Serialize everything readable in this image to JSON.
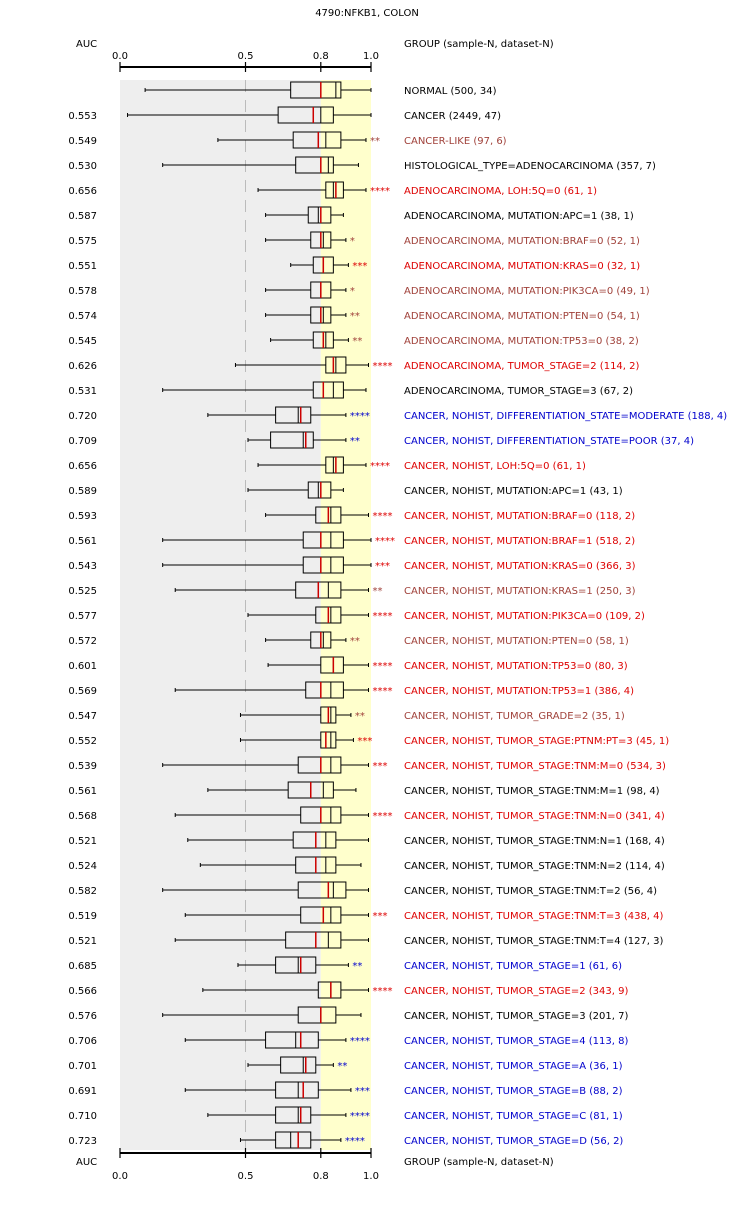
{
  "chart_data": {
    "type": "box",
    "title": "4790:NFKB1, COLON",
    "auc_header": "AUC",
    "group_header": "GROUP (sample-N, dataset-N)",
    "xlim": [
      0,
      1
    ],
    "x_ticks": [
      0,
      0.5,
      0.8,
      1
    ],
    "x_tick_labels": [
      "0.0",
      "0.5",
      "0.8",
      "1.0"
    ],
    "auc_threshold_dashed": 0.5,
    "highlight_range": [
      0.8,
      1.0
    ],
    "colors": {
      "black": "#000000",
      "red": "#dd0000",
      "brown": "#a0413a",
      "blue": "#0000cc",
      "median": "#cc0000",
      "gray_band": "#eeeeee",
      "yellow_band": "#ffffcc",
      "axis": "#000000",
      "dash": "#bbbbbb"
    },
    "rows": [
      {
        "label": "NORMAL (500, 34)",
        "auc": "",
        "color": "black",
        "stars": "",
        "min": 0.1,
        "q1": 0.68,
        "median": 0.8,
        "q3": 0.88,
        "max": 1.0,
        "lines": [
          0.8,
          0.86
        ]
      },
      {
        "label": "CANCER (2449, 47)",
        "auc": "0.553",
        "color": "black",
        "stars": "",
        "min": 0.03,
        "q1": 0.63,
        "median": 0.77,
        "q3": 0.85,
        "max": 1.0,
        "lines": [
          0.77,
          0.8
        ]
      },
      {
        "label": "CANCER-LIKE (97, 6)",
        "auc": "0.549",
        "color": "brown",
        "stars": "**",
        "min": 0.39,
        "q1": 0.69,
        "median": 0.79,
        "q3": 0.88,
        "max": 0.98,
        "lines": [
          0.79,
          0.82
        ]
      },
      {
        "label": "HISTOLOGICAL_TYPE=ADENOCARCINOMA (357, 7)",
        "auc": "0.530",
        "color": "black",
        "stars": "",
        "min": 0.17,
        "q1": 0.7,
        "median": 0.8,
        "q3": 0.85,
        "max": 0.95,
        "lines": [
          0.8,
          0.83
        ]
      },
      {
        "label": "ADENOCARCINOMA, LOH:5Q=0 (61, 1)",
        "auc": "0.656",
        "color": "red",
        "stars": "****",
        "min": 0.55,
        "q1": 0.82,
        "median": 0.86,
        "q3": 0.89,
        "max": 0.98,
        "lines": [
          0.86,
          0.85
        ]
      },
      {
        "label": "ADENOCARCINOMA, MUTATION:APC=1 (38, 1)",
        "auc": "0.587",
        "color": "black",
        "stars": "",
        "min": 0.58,
        "q1": 0.75,
        "median": 0.8,
        "q3": 0.84,
        "max": 0.89,
        "lines": [
          0.8,
          0.79
        ]
      },
      {
        "label": "ADENOCARCINOMA, MUTATION:BRAF=0 (52, 1)",
        "auc": "0.575",
        "color": "brown",
        "stars": "*",
        "min": 0.58,
        "q1": 0.76,
        "median": 0.8,
        "q3": 0.84,
        "max": 0.9,
        "lines": [
          0.8,
          0.81
        ]
      },
      {
        "label": "ADENOCARCINOMA, MUTATION:KRAS=0 (32, 1)",
        "auc": "0.551",
        "color": "red",
        "stars": "***",
        "min": 0.68,
        "q1": 0.77,
        "median": 0.81,
        "q3": 0.85,
        "max": 0.91,
        "lines": [
          0.81,
          0.81
        ]
      },
      {
        "label": "ADENOCARCINOMA, MUTATION:PIK3CA=0 (49, 1)",
        "auc": "0.578",
        "color": "brown",
        "stars": "*",
        "min": 0.58,
        "q1": 0.76,
        "median": 0.8,
        "q3": 0.84,
        "max": 0.9,
        "lines": [
          0.8,
          0.8
        ]
      },
      {
        "label": "ADENOCARCINOMA, MUTATION:PTEN=0 (54, 1)",
        "auc": "0.574",
        "color": "brown",
        "stars": "**",
        "min": 0.58,
        "q1": 0.76,
        "median": 0.8,
        "q3": 0.84,
        "max": 0.9,
        "lines": [
          0.8,
          0.81
        ]
      },
      {
        "label": "ADENOCARCINOMA, MUTATION:TP53=0 (38, 2)",
        "auc": "0.545",
        "color": "brown",
        "stars": "**",
        "min": 0.6,
        "q1": 0.77,
        "median": 0.81,
        "q3": 0.85,
        "max": 0.91,
        "lines": [
          0.81,
          0.82
        ]
      },
      {
        "label": "ADENOCARCINOMA, TUMOR_STAGE=2 (114, 2)",
        "auc": "0.626",
        "color": "red",
        "stars": "****",
        "min": 0.46,
        "q1": 0.82,
        "median": 0.85,
        "q3": 0.9,
        "max": 0.99,
        "lines": [
          0.85,
          0.86
        ]
      },
      {
        "label": "ADENOCARCINOMA, TUMOR_STAGE=3 (67, 2)",
        "auc": "0.531",
        "color": "black",
        "stars": "",
        "min": 0.17,
        "q1": 0.77,
        "median": 0.81,
        "q3": 0.89,
        "max": 0.98,
        "lines": [
          0.81,
          0.85
        ]
      },
      {
        "label": "CANCER, NOHIST, DIFFERENTIATION_STATE=MODERATE (188, 4)",
        "auc": "0.720",
        "color": "blue",
        "stars": "****",
        "min": 0.35,
        "q1": 0.62,
        "median": 0.72,
        "q3": 0.76,
        "max": 0.9,
        "lines": [
          0.72,
          0.71
        ]
      },
      {
        "label": "CANCER, NOHIST, DIFFERENTIATION_STATE=POOR (37, 4)",
        "auc": "0.709",
        "color": "blue",
        "stars": "**",
        "min": 0.51,
        "q1": 0.6,
        "median": 0.74,
        "q3": 0.77,
        "max": 0.9,
        "lines": [
          0.74,
          0.73
        ]
      },
      {
        "label": "CANCER, NOHIST, LOH:5Q=0 (61, 1)",
        "auc": "0.656",
        "color": "red",
        "stars": "****",
        "min": 0.55,
        "q1": 0.82,
        "median": 0.86,
        "q3": 0.89,
        "max": 0.98,
        "lines": [
          0.86,
          0.85
        ]
      },
      {
        "label": "CANCER, NOHIST, MUTATION:APC=1 (43, 1)",
        "auc": "0.589",
        "color": "black",
        "stars": "",
        "min": 0.51,
        "q1": 0.75,
        "median": 0.8,
        "q3": 0.84,
        "max": 0.89,
        "lines": [
          0.8,
          0.79
        ]
      },
      {
        "label": "CANCER, NOHIST, MUTATION:BRAF=0 (118, 2)",
        "auc": "0.593",
        "color": "red",
        "stars": "****",
        "min": 0.58,
        "q1": 0.78,
        "median": 0.83,
        "q3": 0.88,
        "max": 0.99,
        "lines": [
          0.83,
          0.84
        ]
      },
      {
        "label": "CANCER, NOHIST, MUTATION:BRAF=1 (518, 2)",
        "auc": "0.561",
        "color": "red",
        "stars": "****",
        "min": 0.17,
        "q1": 0.73,
        "median": 0.8,
        "q3": 0.89,
        "max": 1.0,
        "lines": [
          0.8,
          0.84
        ]
      },
      {
        "label": "CANCER, NOHIST, MUTATION:KRAS=0 (366, 3)",
        "auc": "0.543",
        "color": "red",
        "stars": "***",
        "min": 0.17,
        "q1": 0.73,
        "median": 0.8,
        "q3": 0.89,
        "max": 1.0,
        "lines": [
          0.8,
          0.84
        ]
      },
      {
        "label": "CANCER, NOHIST, MUTATION:KRAS=1 (250, 3)",
        "auc": "0.525",
        "color": "brown",
        "stars": "**",
        "min": 0.22,
        "q1": 0.7,
        "median": 0.79,
        "q3": 0.88,
        "max": 0.99,
        "lines": [
          0.79,
          0.83
        ]
      },
      {
        "label": "CANCER, NOHIST, MUTATION:PIK3CA=0 (109, 2)",
        "auc": "0.577",
        "color": "red",
        "stars": "****",
        "min": 0.51,
        "q1": 0.78,
        "median": 0.83,
        "q3": 0.88,
        "max": 0.99,
        "lines": [
          0.83,
          0.84
        ]
      },
      {
        "label": "CANCER, NOHIST, MUTATION:PTEN=0 (58, 1)",
        "auc": "0.572",
        "color": "brown",
        "stars": "**",
        "min": 0.58,
        "q1": 0.76,
        "median": 0.8,
        "q3": 0.84,
        "max": 0.9,
        "lines": [
          0.8,
          0.81
        ]
      },
      {
        "label": "CANCER, NOHIST, MUTATION:TP53=0 (80, 3)",
        "auc": "0.601",
        "color": "red",
        "stars": "****",
        "min": 0.59,
        "q1": 0.8,
        "median": 0.85,
        "q3": 0.89,
        "max": 0.99,
        "lines": [
          0.85,
          0.85
        ]
      },
      {
        "label": "CANCER, NOHIST, MUTATION:TP53=1 (386, 4)",
        "auc": "0.569",
        "color": "red",
        "stars": "****",
        "min": 0.22,
        "q1": 0.74,
        "median": 0.8,
        "q3": 0.89,
        "max": 0.99,
        "lines": [
          0.8,
          0.84
        ]
      },
      {
        "label": "CANCER, NOHIST, TUMOR_GRADE=2 (35, 1)",
        "auc": "0.547",
        "color": "brown",
        "stars": "**",
        "min": 0.48,
        "q1": 0.8,
        "median": 0.83,
        "q3": 0.86,
        "max": 0.92,
        "lines": [
          0.83,
          0.84
        ]
      },
      {
        "label": "CANCER, NOHIST, TUMOR_STAGE:PTNM:PT=3 (45, 1)",
        "auc": "0.552",
        "color": "red",
        "stars": "***",
        "min": 0.48,
        "q1": 0.8,
        "median": 0.82,
        "q3": 0.86,
        "max": 0.93,
        "lines": [
          0.82,
          0.84
        ]
      },
      {
        "label": "CANCER, NOHIST, TUMOR_STAGE:TNM:M=0 (534, 3)",
        "auc": "0.539",
        "color": "red",
        "stars": "***",
        "min": 0.17,
        "q1": 0.71,
        "median": 0.8,
        "q3": 0.88,
        "max": 0.99,
        "lines": [
          0.8,
          0.84
        ]
      },
      {
        "label": "CANCER, NOHIST, TUMOR_STAGE:TNM:M=1 (98, 4)",
        "auc": "0.561",
        "color": "black",
        "stars": "",
        "min": 0.35,
        "q1": 0.67,
        "median": 0.76,
        "q3": 0.85,
        "max": 0.94,
        "lines": [
          0.76,
          0.81
        ]
      },
      {
        "label": "CANCER, NOHIST, TUMOR_STAGE:TNM:N=0 (341, 4)",
        "auc": "0.568",
        "color": "red",
        "stars": "****",
        "min": 0.22,
        "q1": 0.72,
        "median": 0.8,
        "q3": 0.88,
        "max": 0.99,
        "lines": [
          0.8,
          0.84
        ]
      },
      {
        "label": "CANCER, NOHIST, TUMOR_STAGE:TNM:N=1 (168, 4)",
        "auc": "0.521",
        "color": "black",
        "stars": "",
        "min": 0.27,
        "q1": 0.69,
        "median": 0.78,
        "q3": 0.86,
        "max": 0.99,
        "lines": [
          0.78,
          0.82
        ]
      },
      {
        "label": "CANCER, NOHIST, TUMOR_STAGE:TNM:N=2 (114, 4)",
        "auc": "0.524",
        "color": "black",
        "stars": "",
        "min": 0.32,
        "q1": 0.7,
        "median": 0.78,
        "q3": 0.86,
        "max": 0.96,
        "lines": [
          0.78,
          0.82
        ]
      },
      {
        "label": "CANCER, NOHIST, TUMOR_STAGE:TNM:T=2 (56, 4)",
        "auc": "0.582",
        "color": "black",
        "stars": "",
        "min": 0.17,
        "q1": 0.71,
        "median": 0.83,
        "q3": 0.9,
        "max": 0.99,
        "lines": [
          0.83,
          0.85
        ]
      },
      {
        "label": "CANCER, NOHIST, TUMOR_STAGE:TNM:T=3 (438, 4)",
        "auc": "0.519",
        "color": "red",
        "stars": "***",
        "min": 0.26,
        "q1": 0.72,
        "median": 0.81,
        "q3": 0.88,
        "max": 0.99,
        "lines": [
          0.81,
          0.84
        ]
      },
      {
        "label": "CANCER, NOHIST, TUMOR_STAGE:TNM:T=4 (127, 3)",
        "auc": "0.521",
        "color": "black",
        "stars": "",
        "min": 0.22,
        "q1": 0.66,
        "median": 0.78,
        "q3": 0.88,
        "max": 0.99,
        "lines": [
          0.78,
          0.83
        ]
      },
      {
        "label": "CANCER, NOHIST, TUMOR_STAGE=1 (61, 6)",
        "auc": "0.685",
        "color": "blue",
        "stars": "**",
        "min": 0.47,
        "q1": 0.62,
        "median": 0.72,
        "q3": 0.78,
        "max": 0.91,
        "lines": [
          0.72,
          0.71
        ]
      },
      {
        "label": "CANCER, NOHIST, TUMOR_STAGE=2 (343, 9)",
        "auc": "0.566",
        "color": "red",
        "stars": "****",
        "min": 0.33,
        "q1": 0.79,
        "median": 0.84,
        "q3": 0.88,
        "max": 0.99,
        "lines": [
          0.84,
          0.84
        ]
      },
      {
        "label": "CANCER, NOHIST, TUMOR_STAGE=3 (201, 7)",
        "auc": "0.576",
        "color": "black",
        "stars": "",
        "min": 0.17,
        "q1": 0.71,
        "median": 0.8,
        "q3": 0.86,
        "max": 0.96,
        "lines": [
          0.8,
          0.8
        ]
      },
      {
        "label": "CANCER, NOHIST, TUMOR_STAGE=4 (113, 8)",
        "auc": "0.706",
        "color": "blue",
        "stars": "****",
        "min": 0.26,
        "q1": 0.58,
        "median": 0.72,
        "q3": 0.79,
        "max": 0.9,
        "lines": [
          0.72,
          0.7
        ]
      },
      {
        "label": "CANCER, NOHIST, TUMOR_STAGE=A (36, 1)",
        "auc": "0.701",
        "color": "blue",
        "stars": "**",
        "min": 0.51,
        "q1": 0.64,
        "median": 0.74,
        "q3": 0.78,
        "max": 0.85,
        "lines": [
          0.74,
          0.73
        ]
      },
      {
        "label": "CANCER, NOHIST, TUMOR_STAGE=B (88, 2)",
        "auc": "0.691",
        "color": "blue",
        "stars": "***",
        "min": 0.26,
        "q1": 0.62,
        "median": 0.73,
        "q3": 0.79,
        "max": 0.92,
        "lines": [
          0.73,
          0.71
        ]
      },
      {
        "label": "CANCER, NOHIST, TUMOR_STAGE=C (81, 1)",
        "auc": "0.710",
        "color": "blue",
        "stars": "****",
        "min": 0.35,
        "q1": 0.62,
        "median": 0.72,
        "q3": 0.76,
        "max": 0.9,
        "lines": [
          0.72,
          0.71
        ]
      },
      {
        "label": "CANCER, NOHIST, TUMOR_STAGE=D (56, 2)",
        "auc": "0.723",
        "color": "blue",
        "stars": "****",
        "min": 0.48,
        "q1": 0.62,
        "median": 0.71,
        "q3": 0.76,
        "max": 0.88,
        "lines": [
          0.71,
          0.68
        ]
      }
    ]
  }
}
